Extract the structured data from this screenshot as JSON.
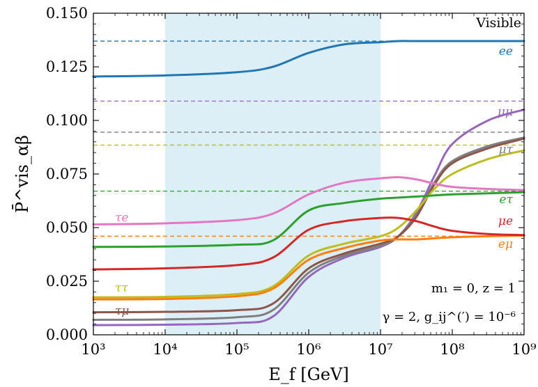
{
  "chart_data": {
    "type": "line",
    "title": "",
    "xlabel": "E_f [GeV]",
    "ylabel": "P̄^vis_αβ",
    "xscale": "log",
    "xlim": [
      1000,
      1000000000
    ],
    "ylim": [
      0.0,
      0.15
    ],
    "grid": false,
    "x_tick_labels": [
      "10³",
      "10⁴",
      "10⁵",
      "10⁶",
      "10⁷",
      "10⁸",
      "10⁹"
    ],
    "x_tick_values": [
      1000,
      10000,
      100000,
      1000000,
      10000000,
      100000000,
      1000000000
    ],
    "y_tick_labels": [
      "0.000",
      "0.025",
      "0.050",
      "0.075",
      "0.100",
      "0.125",
      "0.150"
    ],
    "y_tick_values": [
      0.0,
      0.025,
      0.05,
      0.075,
      0.1,
      0.125,
      0.15
    ],
    "shaded_band": {
      "x_from": 10000,
      "x_to": 10000000,
      "color": "#dceff6"
    },
    "corner_label": "Visible",
    "annotations": [
      "m₁ = 0, z = 1",
      "γ = 2, g_ij^(′) = 10⁻⁶"
    ],
    "x": [
      1000,
      10000,
      100000,
      316228,
      1000000,
      3162278,
      10000000,
      17782794,
      31622777,
      56234133,
      100000000,
      316227766,
      1000000000
    ],
    "series": [
      {
        "name": "ee",
        "color": "#1f77b4",
        "asymptote": 0.137,
        "values": [
          0.1205,
          0.121,
          0.1225,
          0.125,
          0.1315,
          0.1355,
          0.1365,
          0.137,
          0.137,
          0.137,
          0.137,
          0.137,
          0.137
        ]
      },
      {
        "name": "μμ",
        "color": "#9467bd",
        "asymptote": 0.109,
        "values": [
          0.0045,
          0.0047,
          0.0055,
          0.0085,
          0.027,
          0.036,
          0.041,
          0.046,
          0.057,
          0.074,
          0.089,
          0.1,
          0.105
        ]
      },
      {
        "name": "μτ",
        "color": "#7f7f7f",
        "asymptote": 0.0945,
        "values": [
          0.007,
          0.0072,
          0.0082,
          0.0115,
          0.029,
          0.037,
          0.0415,
          0.046,
          0.056,
          0.071,
          0.081,
          0.088,
          0.092
        ]
      },
      {
        "name": "τμ",
        "color": "#8c564b",
        "asymptote": 0.0945,
        "values": [
          0.0105,
          0.0107,
          0.0115,
          0.0145,
          0.031,
          0.038,
          0.0425,
          0.046,
          0.055,
          0.07,
          0.08,
          0.087,
          0.0915
        ]
      },
      {
        "name": "ττ",
        "color": "#bcbd22",
        "asymptote": 0.0885,
        "values": [
          0.0175,
          0.0177,
          0.019,
          0.0225,
          0.037,
          0.0425,
          0.046,
          0.05,
          0.058,
          0.068,
          0.075,
          0.082,
          0.086
        ]
      },
      {
        "name": "eμ",
        "color": "#ff7f0e",
        "asymptote": 0.046,
        "values": [
          0.0165,
          0.0167,
          0.018,
          0.0215,
          0.035,
          0.0405,
          0.044,
          0.0445,
          0.0445,
          0.045,
          0.0455,
          0.046,
          0.0463
        ]
      },
      {
        "name": "μe",
        "color": "#d62728",
        "asymptote": 0.046,
        "values": [
          0.0305,
          0.031,
          0.0325,
          0.036,
          0.049,
          0.053,
          0.0545,
          0.0545,
          0.053,
          0.0505,
          0.0485,
          0.047,
          0.0465
        ]
      },
      {
        "name": "eτ",
        "color": "#2ca02c",
        "asymptote": 0.067,
        "values": [
          0.041,
          0.0412,
          0.042,
          0.044,
          0.058,
          0.0615,
          0.0635,
          0.064,
          0.0645,
          0.065,
          0.0655,
          0.066,
          0.0665
        ]
      },
      {
        "name": "τe",
        "color": "#e377c2",
        "asymptote": 0.067,
        "values": [
          0.0515,
          0.052,
          0.0535,
          0.0565,
          0.0655,
          0.071,
          0.073,
          0.0735,
          0.0725,
          0.0705,
          0.069,
          0.068,
          0.0675
        ]
      }
    ]
  }
}
